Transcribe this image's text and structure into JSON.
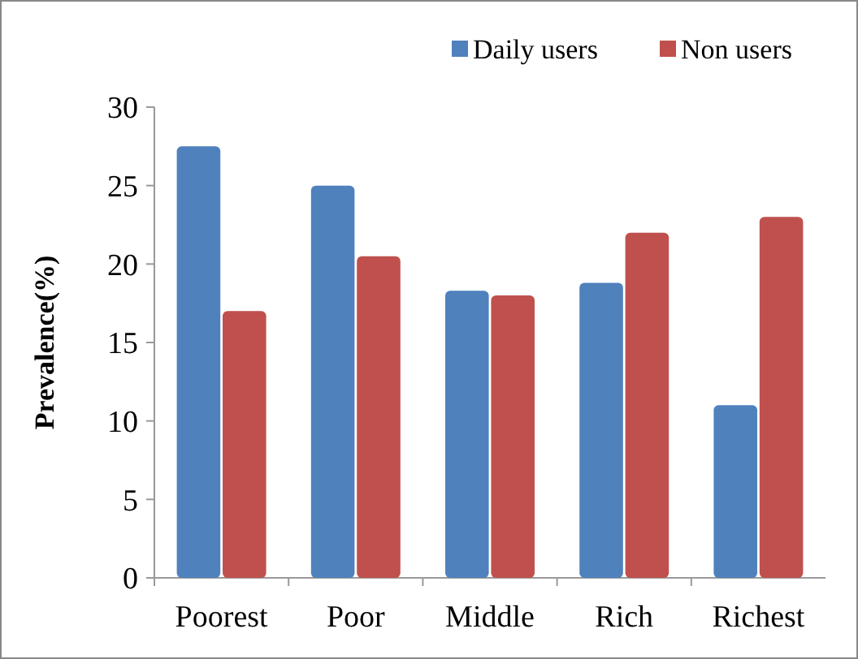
{
  "chart_data": {
    "type": "bar",
    "ylabel": "Prevalence(%)",
    "categories": [
      "Poorest",
      "Poor",
      "Middle",
      "Rich",
      "Richest"
    ],
    "series": [
      {
        "name": "Daily users",
        "color": "#4f81bd",
        "values": [
          27.5,
          25,
          18.3,
          18.8,
          11
        ]
      },
      {
        "name": "Non users",
        "color": "#c0504d",
        "values": [
          17,
          20.5,
          18,
          22,
          23
        ]
      }
    ],
    "ylim": [
      0,
      30
    ],
    "yticks": [
      0,
      5,
      10,
      15,
      20,
      25,
      30
    ],
    "legend": "top right"
  }
}
